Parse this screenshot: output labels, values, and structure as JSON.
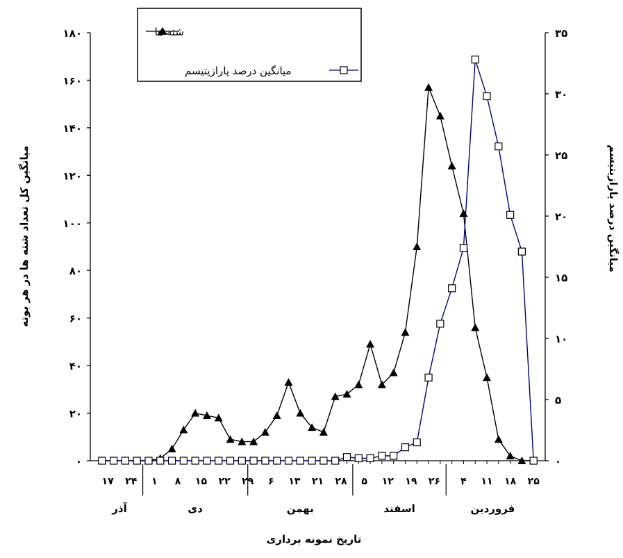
{
  "chart_data": {
    "type": "line",
    "title": "",
    "xlabel": "تاریخ نمونه برداری",
    "ylabel_left": "میانگین کل تعداد شته ها در هر بوته",
    "ylabel_right": "میانگین درصد پارازیتیسم",
    "ylim_left": [
      0,
      180
    ],
    "ylim_right": [
      0,
      35
    ],
    "yticks_left": [
      0,
      20,
      40,
      60,
      80,
      100,
      120,
      140,
      160,
      180
    ],
    "yticks_left_labels": [
      "۰",
      "۲۰",
      "۴۰",
      "۶۰",
      "۸۰",
      "۱۰۰",
      "۱۲۰",
      "۱۴۰",
      "۱۶۰",
      "۱۸۰"
    ],
    "yticks_right": [
      0,
      5,
      10,
      15,
      20,
      25,
      30,
      35
    ],
    "yticks_right_labels": [
      "۰",
      "۵",
      "۱۰",
      "۱۵",
      "۲۰",
      "۲۵",
      "۳۰",
      "۳۵"
    ],
    "x_tick_labels": [
      "۱۷",
      "۲۴",
      "۱",
      "۸",
      "۱۵",
      "۲۲",
      "۲۹",
      "۶",
      "۱۳",
      "۲۱",
      "۲۸",
      "۵",
      "۱۲",
      "۱۹",
      "۲۶",
      "۴",
      "۱۱",
      "۱۸",
      "۲۵"
    ],
    "x_tick_labels_positions": [
      0.5,
      2.5,
      4.5,
      6.5,
      8.5,
      10.5,
      12.5,
      14.5,
      16.5,
      18.5,
      20.5,
      22.5,
      24.5,
      26.5,
      28.5,
      31,
      33,
      35,
      37
    ],
    "months": [
      {
        "label": "آذر",
        "from": -0.5,
        "to": 3.5
      },
      {
        "label": "دی",
        "from": 3.5,
        "to": 12.5
      },
      {
        "label": "بهمن",
        "from": 12.5,
        "to": 21.5
      },
      {
        "label": "اسفند",
        "from": 21.5,
        "to": 29.5
      },
      {
        "label": "فروردین",
        "from": 29.5,
        "to": 37.5
      }
    ],
    "xlim": [
      -1,
      38
    ],
    "legend_position": "top-left",
    "series": [
      {
        "name": "شته ها",
        "axis": "left",
        "marker": "triangle",
        "color": "#000000",
        "x": [
          0,
          1,
          2,
          3,
          4,
          5,
          6,
          7,
          8,
          9,
          10,
          11,
          12,
          13,
          14,
          15,
          16,
          17,
          18,
          19,
          20,
          21,
          22,
          23,
          24,
          25,
          26,
          27,
          28,
          29,
          30,
          31,
          32,
          33,
          34,
          35,
          36,
          37
        ],
        "values": [
          0,
          0,
          0,
          0,
          0,
          1,
          5,
          13,
          20,
          19,
          18,
          9,
          8,
          8,
          12,
          19,
          33,
          20,
          14,
          12,
          27,
          28,
          32,
          49,
          32,
          37,
          54,
          90,
          157,
          145,
          124,
          104,
          56,
          35,
          9,
          2,
          0,
          0
        ]
      },
      {
        "name": "میانگین درصد پارازیتیسم",
        "axis": "right",
        "marker": "square",
        "color": "#00008b",
        "x": [
          0,
          1,
          2,
          3,
          4,
          5,
          6,
          7,
          8,
          9,
          10,
          11,
          12,
          13,
          14,
          15,
          16,
          17,
          18,
          19,
          20,
          21,
          22,
          23,
          24,
          25,
          26,
          27,
          28,
          29,
          30,
          31,
          32,
          33,
          34,
          35,
          36,
          37
        ],
        "values": [
          0,
          0,
          0,
          0,
          0,
          0,
          0,
          0,
          0,
          0,
          0,
          0,
          0,
          0,
          0,
          0,
          0,
          0,
          0,
          0,
          0,
          0.3,
          0.2,
          0.2,
          0.4,
          0.4,
          1.1,
          1.5,
          6.8,
          11.2,
          14.1,
          17.4,
          32.8,
          29.8,
          25.7,
          20.1,
          17.1,
          0
        ]
      }
    ]
  }
}
